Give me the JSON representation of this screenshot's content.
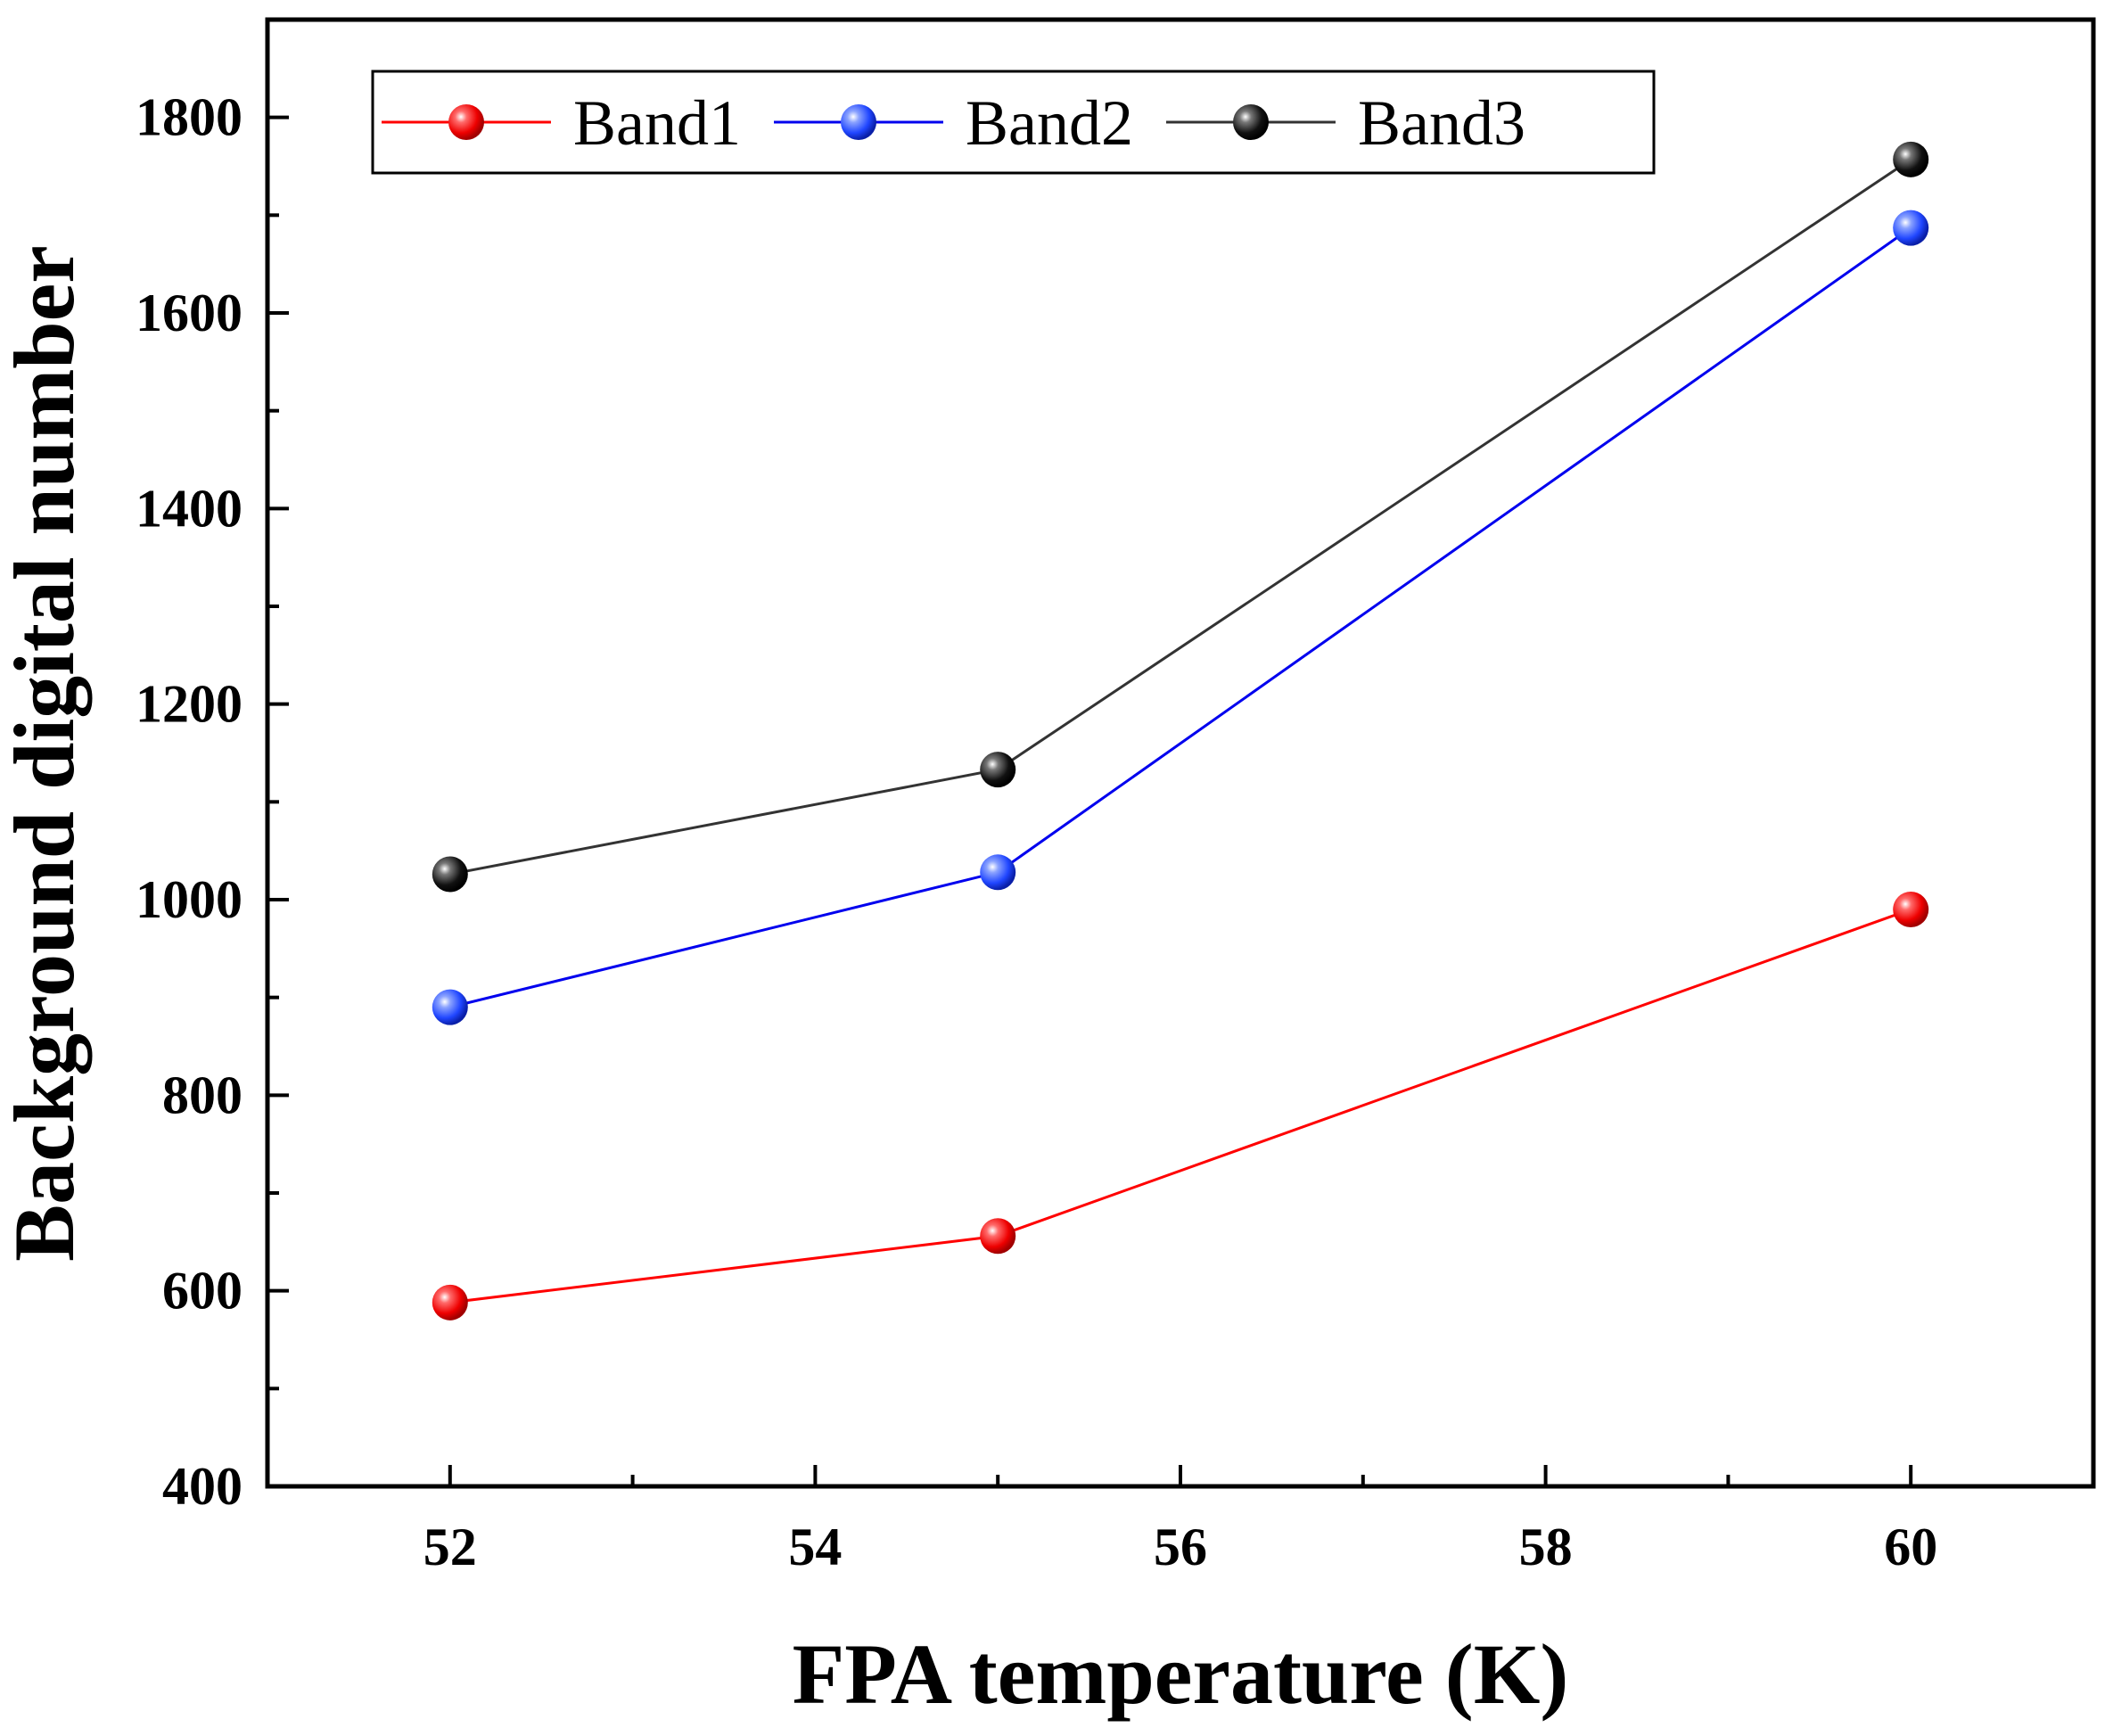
{
  "chart_data": {
    "type": "line",
    "title": "",
    "xlabel": "FPA temperature (K)",
    "ylabel": "Background digital number",
    "xlim": [
      51,
      61
    ],
    "ylim": [
      400,
      1900
    ],
    "x_ticks": [
      52,
      54,
      56,
      58,
      60
    ],
    "x_minor_ticks": [
      53,
      55,
      57,
      59
    ],
    "y_ticks": [
      400,
      600,
      800,
      1000,
      1200,
      1400,
      1600,
      1800
    ],
    "y_minor_ticks": [
      500,
      700,
      900,
      1100,
      1300,
      1500,
      1700
    ],
    "grid": false,
    "legend_position": "top-left",
    "x": [
      52,
      55,
      60
    ],
    "series": [
      {
        "name": "Band1",
        "values": [
          588,
          656,
          990
        ],
        "color": "#ff0000",
        "marker": "#ff1010"
      },
      {
        "name": "Band2",
        "values": [
          890,
          1028,
          1687
        ],
        "color": "#0000ee",
        "marker": "#2a4bff"
      },
      {
        "name": "Band3",
        "values": [
          1026,
          1133,
          1757
        ],
        "color": "#333333",
        "marker": "#111111"
      }
    ]
  }
}
